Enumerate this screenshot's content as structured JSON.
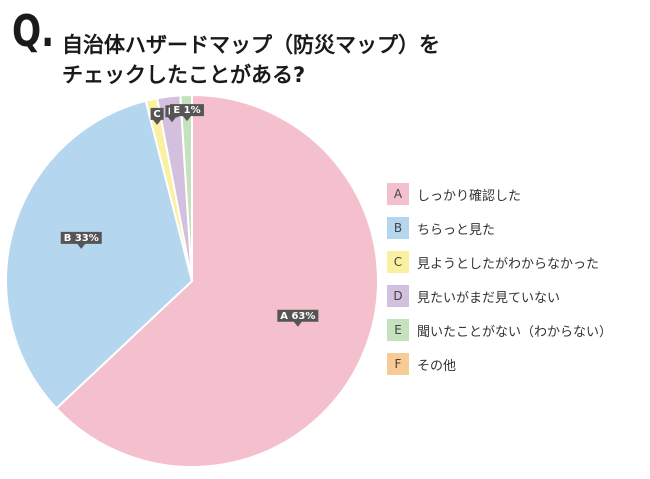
{
  "question": {
    "mark": "Q.",
    "line1": "自治体ハザードマップ（防災マップ）を",
    "line2": "チェックしたことがある?"
  },
  "chart_data": {
    "type": "pie",
    "categories": [
      "A",
      "B",
      "C",
      "D",
      "E",
      "F"
    ],
    "values": [
      63,
      33,
      1,
      2,
      1,
      0
    ],
    "labels": [
      "しっかり確認した",
      "ちらっと見た",
      "見ようとしたがわからなかった",
      "見たいがまだ見ていない",
      "聞いたことがない（わからない）",
      "その他"
    ],
    "data_labels": [
      "A 63%",
      "B 33%",
      "C",
      "D",
      "E 1%",
      ""
    ],
    "colors": [
      "#f4c0cd",
      "#b5d6ef",
      "#faf0a0",
      "#d3c0de",
      "#c3e2bd",
      "#f7ca96"
    ],
    "legend_position": "right"
  }
}
